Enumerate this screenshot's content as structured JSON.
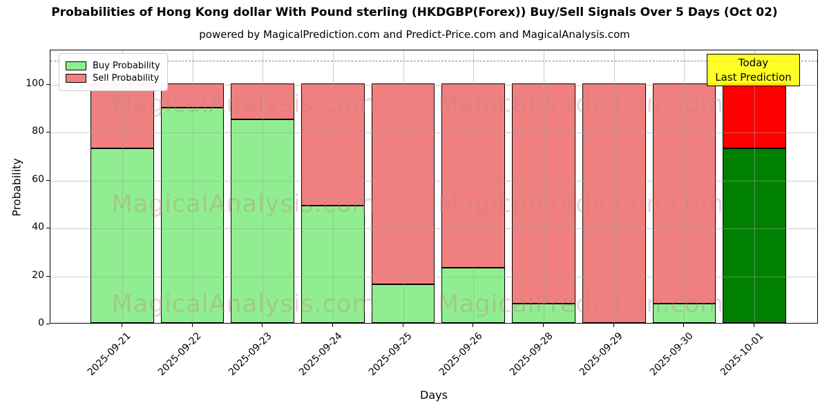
{
  "chart_data": {
    "type": "bar",
    "stacked": true,
    "title": "Probabilities of Hong Kong dollar With Pound sterling (HKDGBP(Forex)) Buy/Sell Signals Over 5 Days (Oct 02)",
    "subtitle": "powered by MagicalPrediction.com and Predict-Price.com and MagicalAnalysis.com",
    "xlabel": "Days",
    "ylabel": "Probability",
    "categories": [
      "2025-09-21",
      "2025-09-22",
      "2025-09-23",
      "2025-09-24",
      "2025-09-25",
      "2025-09-26",
      "2025-09-28",
      "2025-09-29",
      "2025-09-30",
      "2025-10-01"
    ],
    "series": [
      {
        "name": "Buy Probability",
        "values": [
          73,
          90,
          85,
          49,
          16,
          23,
          8,
          0,
          8,
          73
        ],
        "color": "#90EE90",
        "today_color": "#008000"
      },
      {
        "name": "Sell Probability",
        "values": [
          27,
          10,
          15,
          51,
          84,
          77,
          92,
          100,
          92,
          27
        ],
        "color": "#F08080",
        "today_color": "#FF0000"
      }
    ],
    "stack_total": 100,
    "yticks": [
      0,
      20,
      40,
      60,
      80,
      100
    ],
    "ylim": [
      0,
      114.4
    ],
    "grid": true,
    "bar_edge_color": "#000000",
    "legend_position": "upper left",
    "dashed_line_y": 110,
    "annotation": {
      "lines": [
        "Today",
        "Last Prediction"
      ],
      "bg_color": "#FFFF00",
      "border_color": "#000000"
    },
    "watermarks": {
      "left": "MagicalAnalysis.com",
      "right": "MagicalPrediction.com"
    }
  }
}
